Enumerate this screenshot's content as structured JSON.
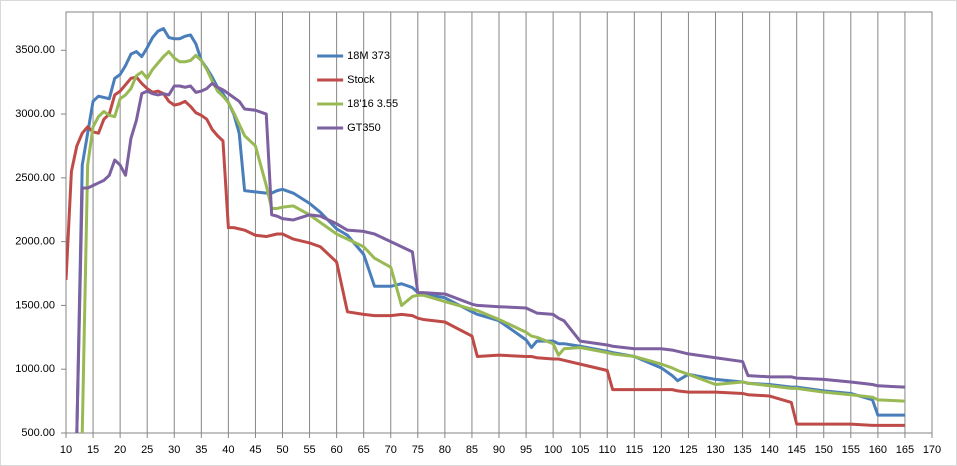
{
  "chart_data": {
    "type": "line",
    "x": [
      10,
      11,
      12,
      13,
      14,
      15,
      16,
      17,
      18,
      19,
      20,
      21,
      22,
      23,
      24,
      25,
      26,
      27,
      28,
      29,
      30,
      31,
      32,
      33,
      34,
      35,
      36,
      37,
      38,
      39,
      40,
      41,
      42,
      43,
      45,
      47,
      48,
      49,
      50,
      52,
      55,
      57,
      60,
      62,
      65,
      67,
      70,
      72,
      74,
      75,
      76,
      80,
      85,
      86,
      90,
      95,
      96,
      97,
      100,
      101,
      102,
      105,
      110,
      111,
      115,
      120,
      122,
      123,
      125,
      130,
      135,
      136,
      140,
      144,
      145,
      150,
      155,
      159,
      160,
      165
    ],
    "series": [
      {
        "name": "18M 373",
        "color": "#4a7ebb",
        "values": [
          null,
          null,
          500,
          2600,
          2850,
          3100,
          3140,
          3130,
          3120,
          3280,
          3310,
          3380,
          3470,
          3490,
          3450,
          3520,
          3600,
          3650,
          3670,
          3600,
          3590,
          3590,
          3610,
          3620,
          3550,
          3420,
          3360,
          3290,
          3210,
          3160,
          3090,
          3000,
          2850,
          2400,
          2390,
          2380,
          2380,
          2400,
          2410,
          2380,
          2300,
          2230,
          2100,
          2050,
          1900,
          1650,
          1650,
          1670,
          1640,
          1600,
          1590,
          1560,
          1450,
          1430,
          1380,
          1230,
          1170,
          1220,
          1220,
          1200,
          1200,
          1180,
          1140,
          1130,
          1100,
          1010,
          950,
          910,
          960,
          920,
          900,
          890,
          880,
          860,
          860,
          830,
          810,
          760,
          640,
          640
        ]
      },
      {
        "name": "Stock",
        "color": "#be4b48",
        "values": [
          1700,
          2550,
          2750,
          2850,
          2900,
          2860,
          2850,
          2960,
          3000,
          3150,
          3180,
          3230,
          3280,
          3290,
          3240,
          3200,
          3170,
          3180,
          3160,
          3100,
          3070,
          3080,
          3100,
          3060,
          3010,
          2990,
          2960,
          2880,
          2830,
          2790,
          2110,
          2110,
          2100,
          2090,
          2050,
          2040,
          2050,
          2060,
          2060,
          2020,
          1990,
          1960,
          1840,
          1450,
          1430,
          1420,
          1420,
          1430,
          1420,
          1400,
          1390,
          1370,
          1260,
          1100,
          1110,
          1100,
          1100,
          1090,
          1080,
          1080,
          1070,
          1040,
          990,
          840,
          840,
          840,
          840,
          830,
          820,
          820,
          810,
          800,
          790,
          740,
          570,
          570,
          570,
          560,
          560,
          560
        ]
      },
      {
        "name": "18'16 3.55",
        "color": "#98b954",
        "values": [
          null,
          null,
          null,
          500,
          2600,
          2900,
          2980,
          3020,
          2990,
          2980,
          3120,
          3150,
          3200,
          3300,
          3330,
          3280,
          3350,
          3400,
          3450,
          3490,
          3440,
          3410,
          3410,
          3420,
          3460,
          3420,
          3350,
          3260,
          3180,
          3140,
          3090,
          3010,
          2920,
          2830,
          2750,
          2440,
          2260,
          2260,
          2270,
          2280,
          2210,
          2150,
          2060,
          2020,
          1960,
          1870,
          1800,
          1500,
          1570,
          1580,
          1580,
          1530,
          1470,
          1460,
          1390,
          1290,
          1260,
          1250,
          1200,
          1110,
          1160,
          1170,
          1130,
          1120,
          1100,
          1040,
          1010,
          990,
          960,
          880,
          900,
          890,
          870,
          850,
          850,
          820,
          800,
          780,
          760,
          750
        ]
      },
      {
        "name": "GT350",
        "color": "#7d60a0",
        "values": [
          null,
          null,
          500,
          2420,
          2420,
          2440,
          2460,
          2480,
          2520,
          2640,
          2600,
          2520,
          2810,
          2950,
          3160,
          3180,
          3160,
          3150,
          3160,
          3150,
          3220,
          3220,
          3210,
          3220,
          3170,
          3180,
          3200,
          3240,
          3210,
          3190,
          3160,
          3130,
          3100,
          3040,
          3030,
          3000,
          2210,
          2200,
          2180,
          2170,
          2210,
          2200,
          2140,
          2090,
          2080,
          2060,
          2000,
          1960,
          1920,
          1600,
          1600,
          1590,
          1510,
          1500,
          1490,
          1480,
          1460,
          1440,
          1430,
          1400,
          1380,
          1220,
          1190,
          1180,
          1160,
          1160,
          1150,
          1140,
          1120,
          1090,
          1060,
          950,
          940,
          940,
          930,
          920,
          900,
          880,
          870,
          860
        ]
      }
    ],
    "xlim": [
      10,
      170
    ],
    "xticks": [
      10,
      15,
      20,
      25,
      30,
      35,
      40,
      45,
      50,
      55,
      60,
      65,
      70,
      75,
      80,
      85,
      90,
      95,
      100,
      105,
      110,
      115,
      120,
      125,
      130,
      135,
      140,
      145,
      150,
      155,
      160,
      165,
      170
    ],
    "ylim": [
      500,
      3800
    ],
    "yticks": [
      {
        "value": 500,
        "label": "500.00"
      },
      {
        "value": 1000,
        "label": "1000.00"
      },
      {
        "value": 1500,
        "label": "1500.00"
      },
      {
        "value": 2000,
        "label": "2000.00"
      },
      {
        "value": 2500,
        "label": "2500.00"
      },
      {
        "value": 3000,
        "label": "3000.00"
      },
      {
        "value": 3500,
        "label": "3500.00"
      }
    ],
    "grid": "x",
    "legend": "top"
  }
}
